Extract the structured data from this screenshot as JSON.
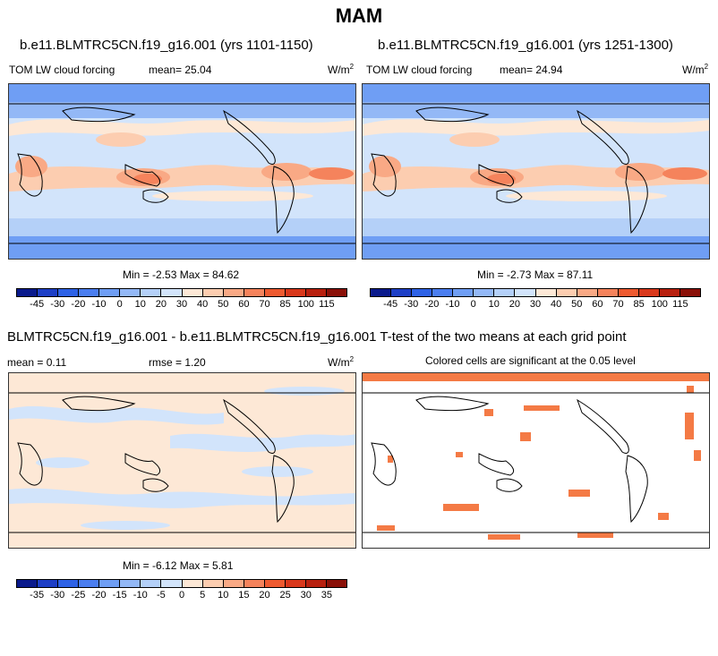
{
  "title": "MAM",
  "panels": {
    "p1": {
      "title": "b.e11.BLMTRC5CN.f19_g16.001 (yrs 1101-1150)",
      "variable": "TOM LW cloud forcing",
      "mean": "mean=  25.04",
      "units": "W/m",
      "units_sup": "2",
      "minmax": "Min =  -2.53 Max =  84.62"
    },
    "p2": {
      "title": "b.e11.BLMTRC5CN.f19_g16.001 (yrs 1251-1300)",
      "variable": "TOM LW cloud forcing",
      "mean": "mean=  24.94",
      "units": "W/m",
      "units_sup": "2",
      "minmax": "Min =  -2.73 Max =  87.11"
    },
    "p3": {
      "title": "BLMTRC5CN.f19_g16.001 - b.e11.BLMTRC5CN.f19_g16.001",
      "mean": "mean =   0.11",
      "rmse": "rmse =   1.20",
      "units": "W/m",
      "units_sup": "2",
      "minmax": "Min =  -6.12 Max =   5.81"
    },
    "p4": {
      "title": "T-test of the two means at each grid point",
      "subtitle": "Colored cells are significant at the 0.05 level"
    }
  },
  "colorbar_top": {
    "labels": [
      "-45",
      "-30",
      "-20",
      "-10",
      "0",
      "10",
      "20",
      "30",
      "40",
      "50",
      "60",
      "70",
      "85",
      "100",
      "115"
    ],
    "colors": [
      "#0a1a8c",
      "#1e3fc6",
      "#2e62e6",
      "#4b7ef0",
      "#6f9ef4",
      "#93b8f6",
      "#b4d0f8",
      "#d2e4fb",
      "#fde8d6",
      "#fccdb0",
      "#f9a985",
      "#f5835c",
      "#ee5a30",
      "#d9381c",
      "#b8200f",
      "#8a1008"
    ]
  },
  "colorbar_bottom": {
    "labels": [
      "-35",
      "-30",
      "-25",
      "-20",
      "-15",
      "-10",
      "-5",
      "0",
      "5",
      "10",
      "15",
      "20",
      "25",
      "30",
      "35"
    ],
    "colors": [
      "#0a1a8c",
      "#1e3fc6",
      "#2e62e6",
      "#4b7ef0",
      "#6f9ef4",
      "#93b8f6",
      "#b4d0f8",
      "#d2e4fb",
      "#fde8d6",
      "#fccdb0",
      "#f9a985",
      "#f5835c",
      "#ee5a30",
      "#d9381c",
      "#b8200f",
      "#8a1008"
    ]
  },
  "significance_color": "#f47a45"
}
